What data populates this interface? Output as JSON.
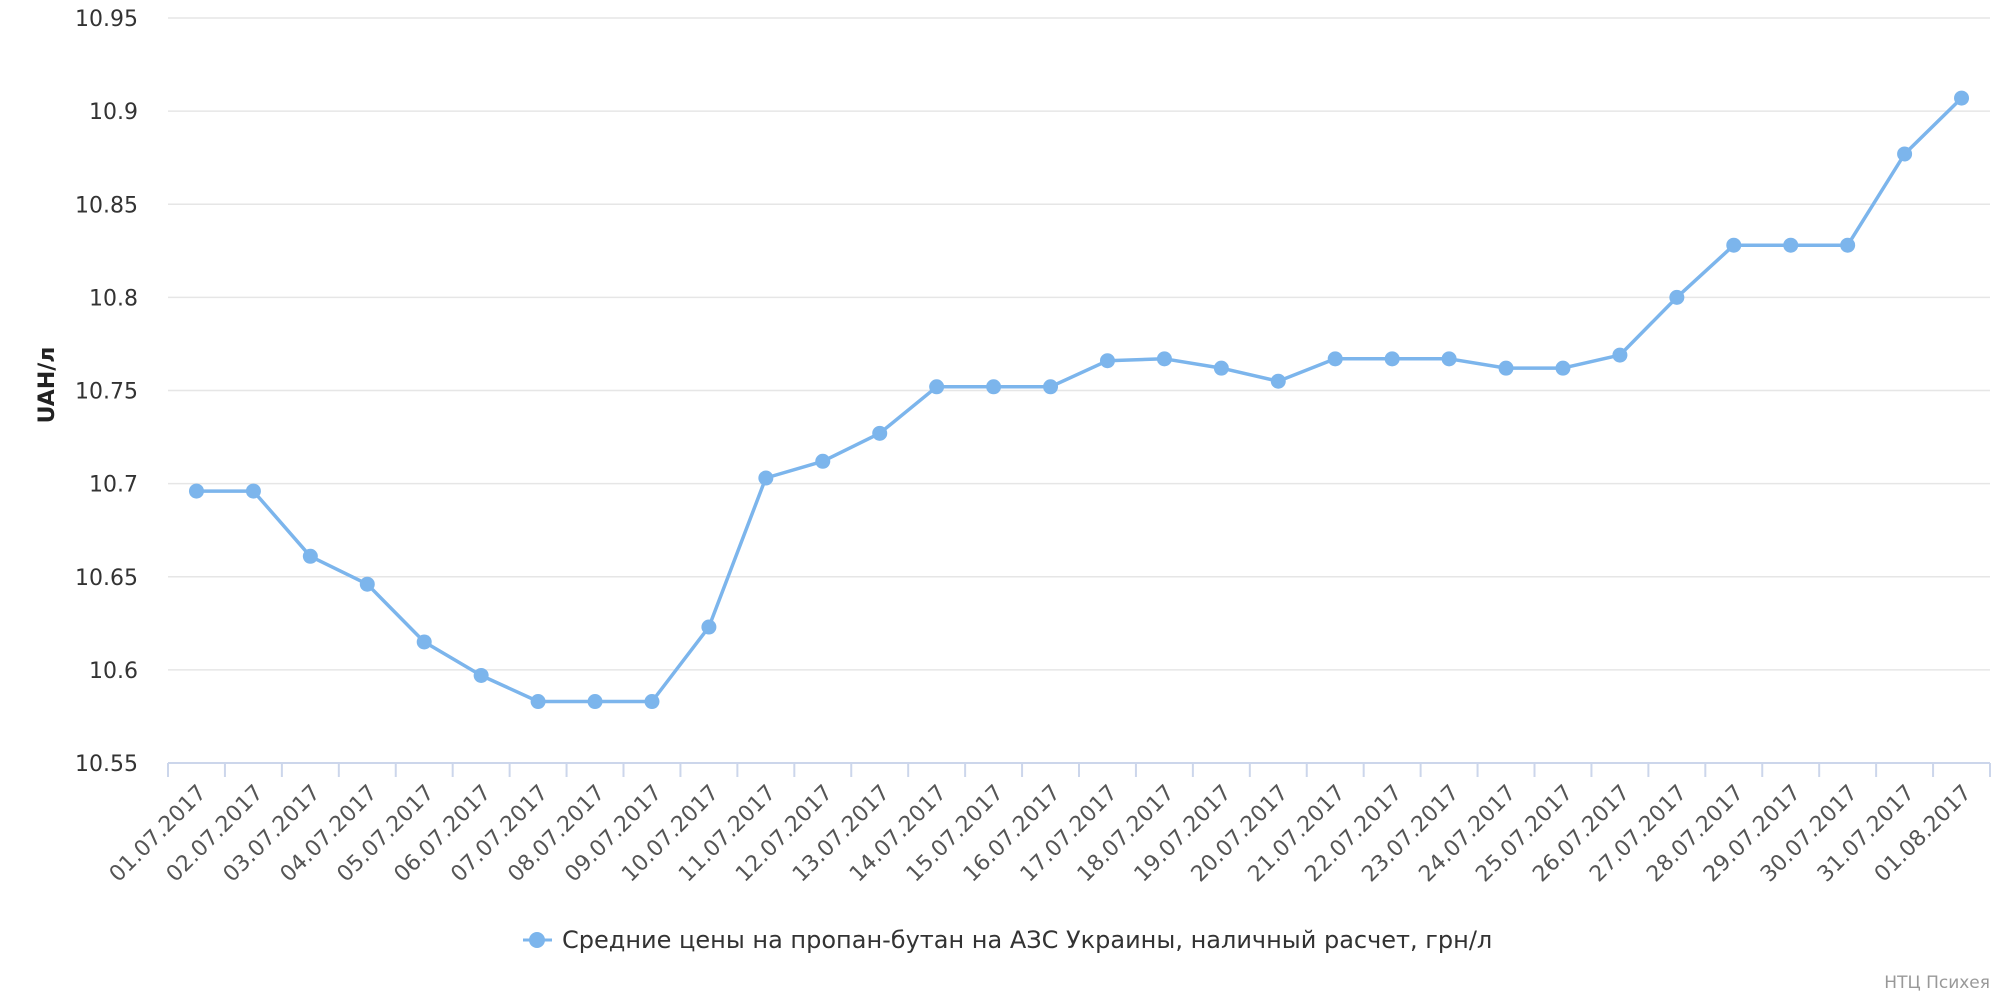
{
  "chart_data": {
    "type": "line",
    "xlabel": "",
    "ylabel": "UAH/л",
    "ylim": [
      10.55,
      10.95
    ],
    "yticks": [
      "10.55",
      "10.6",
      "10.65",
      "10.7",
      "10.75",
      "10.8",
      "10.85",
      "10.9",
      "10.95"
    ],
    "grid": true,
    "legend_position": "bottom-center",
    "categories": [
      "01.07.2017",
      "02.07.2017",
      "03.07.2017",
      "04.07.2017",
      "05.07.2017",
      "06.07.2017",
      "07.07.2017",
      "08.07.2017",
      "09.07.2017",
      "10.07.2017",
      "11.07.2017",
      "12.07.2017",
      "13.07.2017",
      "14.07.2017",
      "15.07.2017",
      "16.07.2017",
      "17.07.2017",
      "18.07.2017",
      "19.07.2017",
      "20.07.2017",
      "21.07.2017",
      "22.07.2017",
      "23.07.2017",
      "24.07.2017",
      "25.07.2017",
      "26.07.2017",
      "27.07.2017",
      "28.07.2017",
      "29.07.2017",
      "30.07.2017",
      "31.07.2017",
      "01.08.2017"
    ],
    "series": [
      {
        "name": "Средние цены на пропан-бутан на АЗС Украины, наличный расчет, грн/л",
        "color": "#7cb5ec",
        "values": [
          10.696,
          10.696,
          10.661,
          10.646,
          10.615,
          10.597,
          10.583,
          10.583,
          10.583,
          10.623,
          10.703,
          10.712,
          10.727,
          10.752,
          10.752,
          10.752,
          10.766,
          10.767,
          10.762,
          10.755,
          10.767,
          10.767,
          10.767,
          10.762,
          10.762,
          10.769,
          10.8,
          10.828,
          10.828,
          10.828,
          10.877,
          10.907
        ]
      }
    ],
    "credit": "НТЦ Психея"
  }
}
